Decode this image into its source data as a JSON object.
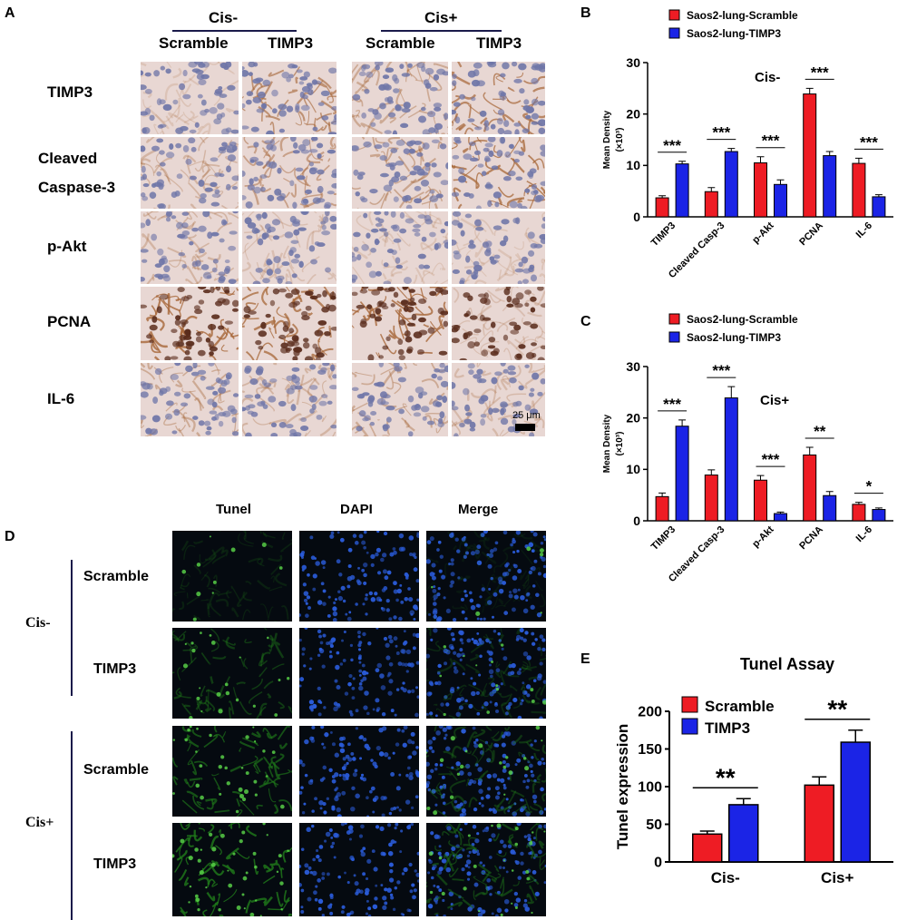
{
  "panels": {
    "A": "A",
    "B": "B",
    "C": "C",
    "D": "D",
    "E": "E"
  },
  "panelA": {
    "groups": [
      "Cis-",
      "Cis+"
    ],
    "columns": [
      "Scramble",
      "TIMP3",
      "Scramble",
      "TIMP3"
    ],
    "rows": [
      "TIMP3",
      "Cleaved",
      "Caspase-3",
      "p-Akt",
      "PCNA",
      "IL-6"
    ],
    "scale_bar": "25 μm",
    "colors": {
      "hematoxylin": "#6f76a8",
      "dab": "#a7683a",
      "background": "#e8d7d3"
    }
  },
  "panelD": {
    "columns": [
      "Tunel",
      "DAPI",
      "Merge"
    ],
    "groups": [
      "Cis-",
      "Cis+"
    ],
    "rows": [
      "Scramble",
      "TIMP3",
      "Scramble",
      "TIMP3"
    ],
    "colors": {
      "tunel": "#1f7a1a",
      "dapi": "#2a5bd8",
      "background": "#050a10"
    }
  },
  "chart_data": [
    {
      "type": "bar",
      "panel": "B",
      "categories": [
        "TIMP3",
        "Cleaved Casp-3",
        "p-Akt",
        "PCNA",
        "IL-6"
      ],
      "series": [
        {
          "name": "Saos2-lung-Scramble",
          "values": [
            3.7,
            4.9,
            10.5,
            23.9,
            10.4
          ],
          "errors": [
            0.4,
            0.8,
            1.2,
            1.1,
            1.0
          ],
          "color": "#ee1c24"
        },
        {
          "name": "Saos2-lung-TIMP3",
          "values": [
            10.3,
            12.7,
            6.3,
            11.9,
            3.9
          ],
          "errors": [
            0.5,
            0.6,
            0.9,
            0.8,
            0.4
          ],
          "color": "#1b24e6"
        }
      ],
      "ylabel": "Mean Density",
      "yunit": "(×10³)",
      "ylim": [
        0,
        30
      ],
      "yticks": [
        0,
        10,
        20,
        30
      ],
      "annotation": "Cis-",
      "significance": [
        "***",
        "***",
        "***",
        "***",
        "***"
      ],
      "legend": "top"
    },
    {
      "type": "bar",
      "panel": "C",
      "categories": [
        "TIMP3",
        "Cleaved Casp-3",
        "p-Akt",
        "PCNA",
        "IL-6"
      ],
      "series": [
        {
          "name": "Saos2-lung-Scramble",
          "values": [
            4.7,
            8.9,
            7.9,
            12.8,
            3.2
          ],
          "errors": [
            0.7,
            1.0,
            0.9,
            1.5,
            0.4
          ],
          "color": "#ee1c24"
        },
        {
          "name": "Saos2-lung-TIMP3",
          "values": [
            18.4,
            23.9,
            1.4,
            4.9,
            2.2
          ],
          "errors": [
            1.2,
            2.2,
            0.3,
            0.8,
            0.3
          ],
          "color": "#1b24e6"
        }
      ],
      "ylabel": "Mean Density",
      "yunit": "(×10³)",
      "ylim": [
        0,
        30
      ],
      "yticks": [
        0,
        10,
        20,
        30
      ],
      "annotation": "Cis+",
      "significance": [
        "***",
        "***",
        "***",
        "**",
        "*"
      ],
      "legend": "top"
    },
    {
      "type": "bar",
      "panel": "E",
      "title": "Tunel Assay",
      "categories": [
        "Cis-",
        "Cis+"
      ],
      "series": [
        {
          "name": "Scramble",
          "values": [
            37,
            102
          ],
          "errors": [
            4,
            11
          ],
          "color": "#ee1c24"
        },
        {
          "name": "TIMP3",
          "values": [
            76,
            159
          ],
          "errors": [
            8,
            16
          ],
          "color": "#1b24e6"
        }
      ],
      "ylabel": "Tunel expression",
      "ylim": [
        0,
        200
      ],
      "yticks": [
        0,
        50,
        100,
        150,
        200
      ],
      "significance": [
        "**",
        "**"
      ],
      "legend": "top-left"
    }
  ]
}
